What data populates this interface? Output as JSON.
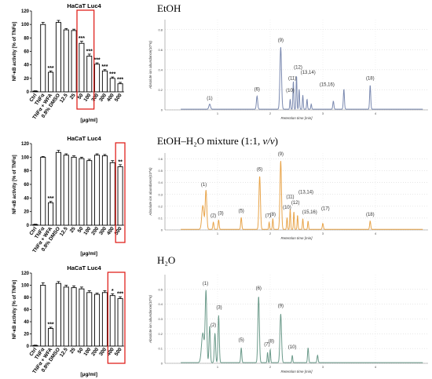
{
  "sections": [
    "EtOH",
    "EtOH–H₂O mixture (1:1, v/v)",
    "H₂O"
  ],
  "sections_mixture": {
    "main": "EtOH–H₂O mixture (1:1, ",
    "italic": "v/v",
    "close": ")"
  },
  "chart_data": [
    {
      "type": "bar",
      "title": "HaCaT Luc4",
      "ylabel": "NF-κB activity [% of TNFα]",
      "xlabel": "[μg/ml]",
      "ylim": [
        0,
        120
      ],
      "yticks": [
        0,
        20,
        40,
        60,
        80,
        100,
        120
      ],
      "categories": [
        "Ctrl",
        "TNFα",
        "TNFα + WFA",
        "0.8% DMSO",
        "12.5",
        "25",
        "50",
        "100",
        "200",
        "300",
        "400",
        "500"
      ],
      "values": [
        1,
        100,
        29,
        103,
        92,
        91,
        72,
        53,
        41,
        31,
        20,
        12
      ],
      "errors": [
        0.5,
        3,
        2,
        3,
        2,
        2,
        3,
        3,
        2,
        2,
        2,
        2
      ],
      "significance": [
        "",
        "",
        "***",
        "",
        "",
        "",
        "***",
        "***",
        "***",
        "***",
        "***",
        "***"
      ],
      "highlight": [
        "50",
        "100"
      ]
    },
    {
      "type": "bar",
      "title": "HaCaT Luc4",
      "ylabel": "NF-κB activity [% of TNFα]",
      "xlabel": "[μg/ml]",
      "ylim": [
        0,
        120
      ],
      "yticks": [
        0,
        20,
        40,
        60,
        80,
        100,
        120
      ],
      "categories": [
        "Ctrl",
        "TNFα",
        "TNFα + WFA",
        "0.8% DMSO",
        "12.5",
        "25",
        "50",
        "100",
        "200",
        "300",
        "400",
        "500"
      ],
      "values": [
        1,
        100,
        33,
        107,
        103,
        100,
        98,
        95,
        103,
        102,
        92,
        86
      ],
      "errors": [
        0.5,
        1,
        2,
        3,
        2,
        2,
        2,
        2,
        2,
        2,
        3,
        3
      ],
      "significance": [
        "",
        "",
        "***",
        "",
        "",
        "",
        "",
        "",
        "",
        "",
        "",
        "**"
      ],
      "highlight": [
        "500"
      ]
    },
    {
      "type": "bar",
      "title": "HaCaT Luc4",
      "ylabel": "NF-κB activity [% of TNFα]",
      "xlabel": "[μg/ml]",
      "ylim": [
        0,
        120
      ],
      "yticks": [
        0,
        20,
        40,
        60,
        80,
        100,
        120
      ],
      "categories": [
        "Ctrl",
        "TNFα",
        "TNFα + WFA",
        "0.8% DMSO",
        "12.5",
        "25",
        "50",
        "100",
        "200",
        "300",
        "400",
        "500"
      ],
      "values": [
        1,
        100,
        29,
        103,
        97,
        96,
        94,
        88,
        85,
        88,
        83,
        78
      ],
      "errors": [
        0.5,
        4,
        2,
        3,
        3,
        3,
        3,
        3,
        2,
        3,
        3,
        3
      ],
      "significance": [
        "",
        "",
        "***",
        "",
        "",
        "",
        "",
        "",
        "",
        "",
        "*",
        "***"
      ],
      "highlight": [
        "400",
        "500"
      ]
    },
    {
      "type": "line",
      "title": "",
      "ylabel": "Absolute ion abundance(10^6)",
      "xlabel": "Retention time [min]",
      "color": "#7a89b0",
      "xlim": [
        0,
        5
      ],
      "xticks": [
        1,
        2,
        3,
        4
      ],
      "ylim": [
        0,
        0.9
      ],
      "yticks": [
        0,
        0.2,
        0.4,
        0.6,
        0.8
      ],
      "ytick_labels": [
        "0",
        "0.2",
        "0.4",
        "0.6",
        "0.8"
      ],
      "peaks": [
        {
          "t": 0.85,
          "h": 0.05,
          "w": 0.015
        },
        {
          "t": 1.75,
          "h": 0.13,
          "w": 0.012
        },
        {
          "t": 2.2,
          "h": 0.62,
          "w": 0.015
        },
        {
          "t": 2.38,
          "h": 0.1,
          "w": 0.008
        },
        {
          "t": 2.44,
          "h": 0.28,
          "w": 0.008
        },
        {
          "t": 2.5,
          "h": 0.34,
          "w": 0.008
        },
        {
          "t": 2.55,
          "h": 0.2,
          "w": 0.008
        },
        {
          "t": 2.62,
          "h": 0.14,
          "w": 0.008
        },
        {
          "t": 2.7,
          "h": 0.1,
          "w": 0.008
        },
        {
          "t": 2.78,
          "h": 0.05,
          "w": 0.008
        },
        {
          "t": 3.2,
          "h": 0.08,
          "w": 0.01
        },
        {
          "t": 3.4,
          "h": 0.2,
          "w": 0.01
        },
        {
          "t": 3.9,
          "h": 0.24,
          "w": 0.01
        }
      ],
      "labels": [
        {
          "text": "(1)",
          "t": 0.85,
          "y": 0.1
        },
        {
          "text": "(6)",
          "t": 1.75,
          "y": 0.19
        },
        {
          "text": "(9)",
          "t": 2.2,
          "y": 0.68
        },
        {
          "text": "(10)",
          "t": 2.38,
          "y": 0.18
        },
        {
          "text": "(11)",
          "t": 2.42,
          "y": 0.3
        },
        {
          "text": "(12)",
          "t": 2.53,
          "y": 0.41
        },
        {
          "text": "(13,14)",
          "t": 2.72,
          "y": 0.36
        },
        {
          "text": "(15,16)",
          "t": 3.08,
          "y": 0.24
        },
        {
          "text": "(18)",
          "t": 3.9,
          "y": 0.3
        }
      ]
    },
    {
      "type": "line",
      "title": "",
      "ylabel": "Absolute ion abundance(10^6)",
      "xlabel": "Retention time [min]",
      "color": "#e8a44a",
      "xlim": [
        0,
        5
      ],
      "xticks": [
        1,
        2,
        3,
        4
      ],
      "ylim": [
        0,
        0.65
      ],
      "yticks": [
        0,
        0.1,
        0.2,
        0.3,
        0.4,
        0.5,
        0.6
      ],
      "ytick_labels": [
        "0",
        "0.1",
        "0.2",
        "0.3",
        "0.4",
        "0.5",
        "0.6"
      ],
      "peaks": [
        {
          "t": 0.72,
          "h": 0.2,
          "w": 0.02
        },
        {
          "t": 0.78,
          "h": 0.33,
          "w": 0.015
        },
        {
          "t": 0.92,
          "h": 0.06,
          "w": 0.01
        },
        {
          "t": 1.02,
          "h": 0.08,
          "w": 0.01
        },
        {
          "t": 1.45,
          "h": 0.1,
          "w": 0.01
        },
        {
          "t": 1.8,
          "h": 0.45,
          "w": 0.014
        },
        {
          "t": 1.98,
          "h": 0.06,
          "w": 0.008
        },
        {
          "t": 2.05,
          "h": 0.09,
          "w": 0.008
        },
        {
          "t": 2.2,
          "h": 0.58,
          "w": 0.014
        },
        {
          "t": 2.32,
          "h": 0.1,
          "w": 0.008
        },
        {
          "t": 2.38,
          "h": 0.17,
          "w": 0.008
        },
        {
          "t": 2.45,
          "h": 0.15,
          "w": 0.008
        },
        {
          "t": 2.52,
          "h": 0.12,
          "w": 0.008
        },
        {
          "t": 2.62,
          "h": 0.09,
          "w": 0.008
        },
        {
          "t": 2.72,
          "h": 0.07,
          "w": 0.008
        },
        {
          "t": 3.0,
          "h": 0.05,
          "w": 0.01
        },
        {
          "t": 3.9,
          "h": 0.07,
          "w": 0.01
        }
      ],
      "labels": [
        {
          "text": "(1)",
          "t": 0.74,
          "y": 0.37
        },
        {
          "text": "(2)",
          "t": 0.92,
          "y": 0.11
        },
        {
          "text": "(3)",
          "t": 1.06,
          "y": 0.13
        },
        {
          "text": "(5)",
          "t": 1.45,
          "y": 0.15
        },
        {
          "text": "(6)",
          "t": 1.8,
          "y": 0.5
        },
        {
          "text": "(7)",
          "t": 1.96,
          "y": 0.11
        },
        {
          "text": "(8)",
          "t": 2.05,
          "y": 0.12
        },
        {
          "text": "(9)",
          "t": 2.2,
          "y": 0.63
        },
        {
          "text": "(10)",
          "t": 2.32,
          "y": 0.18
        },
        {
          "text": "(11)",
          "t": 2.38,
          "y": 0.27
        },
        {
          "text": "(12)",
          "t": 2.48,
          "y": 0.22
        },
        {
          "text": "(13,14)",
          "t": 2.68,
          "y": 0.31
        },
        {
          "text": "(15,16)",
          "t": 2.75,
          "y": 0.14
        },
        {
          "text": "(17)",
          "t": 3.05,
          "y": 0.17
        },
        {
          "text": "(18)",
          "t": 3.9,
          "y": 0.12
        }
      ]
    },
    {
      "type": "line",
      "title": "",
      "ylabel": "Absolute ion abundance(10^6)",
      "xlabel": "Retention time [min]",
      "color": "#6b9a8a",
      "xlim": [
        0,
        5
      ],
      "xticks": [
        1,
        2,
        3,
        4
      ],
      "ylim": [
        0,
        0.6
      ],
      "yticks": [
        0,
        0.1,
        0.2,
        0.3,
        0.4,
        0.5
      ],
      "ytick_labels": [
        "0",
        "0.1",
        "0.2",
        "0.3",
        "0.4",
        "0.5"
      ],
      "peaks": [
        {
          "t": 0.72,
          "h": 0.2,
          "w": 0.025
        },
        {
          "t": 0.78,
          "h": 0.48,
          "w": 0.015
        },
        {
          "t": 0.85,
          "h": 0.25,
          "w": 0.012
        },
        {
          "t": 0.95,
          "h": 0.2,
          "w": 0.012
        },
        {
          "t": 1.02,
          "h": 0.32,
          "w": 0.012
        },
        {
          "t": 1.45,
          "h": 0.1,
          "w": 0.01
        },
        {
          "t": 1.78,
          "h": 0.45,
          "w": 0.014
        },
        {
          "t": 1.95,
          "h": 0.07,
          "w": 0.008
        },
        {
          "t": 2.0,
          "h": 0.09,
          "w": 0.008
        },
        {
          "t": 2.2,
          "h": 0.33,
          "w": 0.015
        },
        {
          "t": 2.42,
          "h": 0.05,
          "w": 0.008
        },
        {
          "t": 2.72,
          "h": 0.1,
          "w": 0.01
        },
        {
          "t": 2.9,
          "h": 0.05,
          "w": 0.01
        }
      ],
      "labels": [
        {
          "text": "(1)",
          "t": 0.77,
          "y": 0.53
        },
        {
          "text": "(2)",
          "t": 0.92,
          "y": 0.25
        },
        {
          "text": "(3)",
          "t": 1.03,
          "y": 0.37
        },
        {
          "text": "(5)",
          "t": 1.45,
          "y": 0.15
        },
        {
          "text": "(6)",
          "t": 1.78,
          "y": 0.5
        },
        {
          "text": "(7)",
          "t": 1.94,
          "y": 0.12
        },
        {
          "text": "(8)",
          "t": 2.02,
          "y": 0.14
        },
        {
          "text": "(9)",
          "t": 2.2,
          "y": 0.38
        },
        {
          "text": "(10)",
          "t": 2.42,
          "y": 0.1
        }
      ]
    }
  ]
}
